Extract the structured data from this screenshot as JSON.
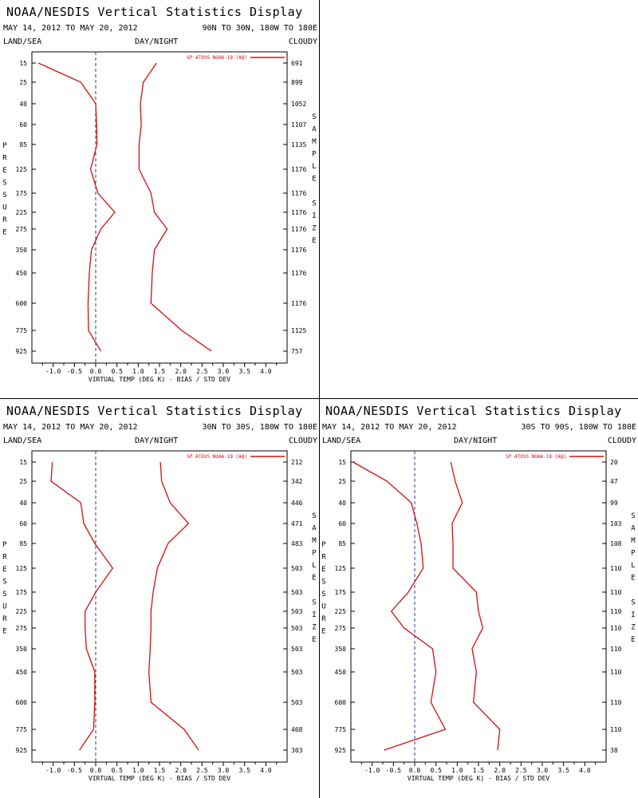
{
  "colors": {
    "series": "#d01010",
    "zero_line": "#2a3a8a",
    "axis": "#000000"
  },
  "panels": [
    {
      "title": "NOAA/NESDIS Vertical Statistics Display",
      "date_range": "MAY 14, 2012 TO MAY 20, 2012",
      "region": "90N TO 30N, 180W TO 180E",
      "land_sea": "LAND/SEA",
      "day_night": "DAY/NIGHT",
      "cloudy": "CLOUDY",
      "left_axis_label": "PRESSURE",
      "right_axis_label": "SAMPLE SIZE",
      "sample_sizes": [
        "691",
        "899",
        "1052",
        "1107",
        "1135",
        "1176",
        "1176",
        "1176",
        "1176",
        "1176",
        "1176",
        "1176",
        "1125",
        "757"
      ]
    },
    {
      "title": "NOAA/NESDIS Vertical Statistics Display",
      "date_range": "MAY 14, 2012 TO MAY 20, 2012",
      "region": "30N TO 30S, 180W TO 180E",
      "land_sea": "LAND/SEA",
      "day_night": "DAY/NIGHT",
      "cloudy": "CLOUDY",
      "left_axis_label": "PRESSURE",
      "right_axis_label": "SAMPLE SIZE",
      "sample_sizes": [
        "212",
        "342",
        "446",
        "471",
        "483",
        "503",
        "503",
        "503",
        "503",
        "503",
        "503",
        "503",
        "468",
        "303"
      ]
    },
    {
      "title": "NOAA/NESDIS Vertical Statistics Display",
      "date_range": "MAY 14, 2012 TO MAY 20, 2012",
      "region": "30S TO 90S, 180W TO 180E",
      "land_sea": "LAND/SEA",
      "day_night": "DAY/NIGHT",
      "cloudy": "CLOUDY",
      "left_axis_label": "PRESSURE",
      "right_axis_label": "SAMPLE SIZE",
      "sample_sizes": [
        "20",
        "47",
        "99",
        "103",
        "108",
        "110",
        "110",
        "110",
        "110",
        "110",
        "110",
        "110",
        "110",
        "38"
      ]
    }
  ],
  "chart_data": [
    {
      "type": "line",
      "title": "NOAA/NESDIS Vertical Statistics Display",
      "xlabel": "VIRTUAL TEMP (DEG K) - BIAS / STD DEV",
      "ylabel": "PRESSURE",
      "xlim": [
        -1.5,
        4.5
      ],
      "x_ticks": [
        "-1.0",
        "-0.5",
        "0.0",
        "0.5",
        "1.0",
        "1.5",
        "2.0",
        "2.5",
        "3.0",
        "3.5",
        "4.0"
      ],
      "pressure_levels": [
        15,
        25,
        40,
        60,
        85,
        125,
        175,
        225,
        275,
        350,
        450,
        600,
        775,
        925
      ],
      "legend": "SP ATOVS NOAA-18 (A@)",
      "series": [
        {
          "name": "BIAS",
          "values": [
            -1.35,
            -0.35,
            0.0,
            0.02,
            0.03,
            -0.12,
            0.05,
            0.45,
            0.12,
            -0.1,
            -0.15,
            -0.18,
            -0.17,
            0.12
          ]
        },
        {
          "name": "STD DEV",
          "values": [
            1.43,
            1.12,
            1.05,
            1.07,
            1.02,
            1.02,
            1.3,
            1.38,
            1.68,
            1.38,
            1.33,
            1.3,
            2.02,
            2.72
          ]
        }
      ]
    },
    {
      "type": "line",
      "title": "NOAA/NESDIS Vertical Statistics Display",
      "xlabel": "VIRTUAL TEMP (DEG K) - BIAS / STD DEV",
      "ylabel": "PRESSURE",
      "xlim": [
        -1.5,
        4.5
      ],
      "x_ticks": [
        "-1.0",
        "-0.5",
        "0.0",
        "0.5",
        "1.0",
        "1.5",
        "2.0",
        "2.5",
        "3.0",
        "3.5",
        "4.0"
      ],
      "pressure_levels": [
        15,
        25,
        40,
        60,
        85,
        125,
        175,
        225,
        275,
        350,
        450,
        600,
        775,
        925
      ],
      "legend": "SP ATOVS NOAA-18 (A@)",
      "series": [
        {
          "name": "BIAS",
          "values": [
            -1.02,
            -1.05,
            -0.35,
            -0.28,
            -0.02,
            0.4,
            0.0,
            -0.25,
            -0.25,
            -0.22,
            -0.02,
            -0.02,
            -0.05,
            -0.38
          ]
        },
        {
          "name": "STD DEV",
          "values": [
            1.52,
            1.55,
            1.75,
            2.18,
            1.7,
            1.45,
            1.35,
            1.3,
            1.3,
            1.28,
            1.25,
            1.3,
            2.08,
            2.42
          ]
        }
      ]
    },
    {
      "type": "line",
      "title": "NOAA/NESDIS Vertical Statistics Display",
      "xlabel": "VIRTUAL TEMP (DEG K) - BIAS / STD DEV",
      "ylabel": "PRESSURE",
      "xlim": [
        -1.5,
        4.5
      ],
      "x_ticks": [
        "-1.0",
        "-0.5",
        "0.0",
        "0.5",
        "1.0",
        "1.5",
        "2.0",
        "2.5",
        "3.0",
        "3.5",
        "4.0"
      ],
      "pressure_levels": [
        15,
        25,
        40,
        60,
        85,
        125,
        175,
        225,
        275,
        350,
        450,
        600,
        775,
        925
      ],
      "legend": "SP ATOVS NOAA-18 (A@)",
      "series": [
        {
          "name": "BIAS",
          "values": [
            -1.45,
            -0.65,
            -0.08,
            0.05,
            0.15,
            0.2,
            -0.15,
            -0.55,
            -0.25,
            0.42,
            0.5,
            0.38,
            0.72,
            -0.72
          ]
        },
        {
          "name": "STD DEV",
          "values": [
            0.85,
            0.95,
            1.12,
            0.88,
            0.9,
            0.9,
            1.45,
            1.5,
            1.6,
            1.35,
            1.45,
            1.38,
            2.0,
            1.95
          ]
        }
      ]
    }
  ]
}
